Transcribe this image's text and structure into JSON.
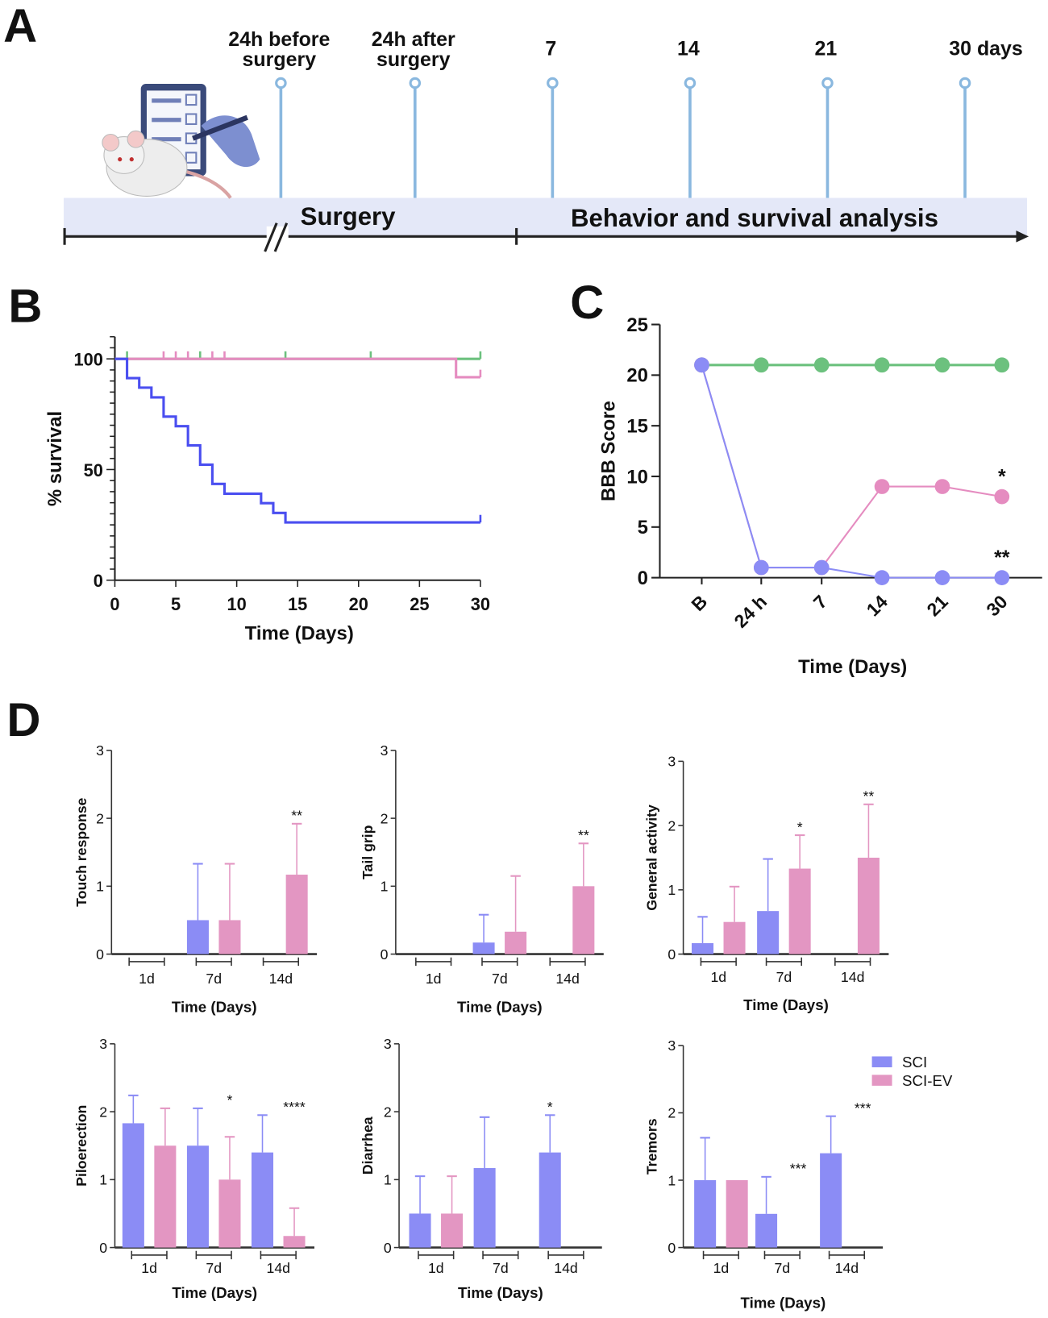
{
  "panel_labels": {
    "a": "A",
    "b": "B",
    "c": "C",
    "d": "D"
  },
  "colors": {
    "sham_green": "#6cc17e",
    "sci_curve_blue": "#4a4ef0",
    "sci_ev_pink": "#e58cc0",
    "bar_sci": "#8b8cf5",
    "bar_sci_ev": "#e396c2",
    "timeline_band": "#e4e8f8",
    "timeline_pin": "#8ab8df"
  },
  "timeline": {
    "timepoints": [
      [
        "24h before",
        "surgery"
      ],
      [
        "24h after",
        "surgery"
      ],
      [
        "7"
      ],
      [
        "14"
      ],
      [
        "21"
      ],
      [
        "30 days"
      ]
    ],
    "phases": [
      "Surgery",
      "Behavior and survival analysis"
    ],
    "illustration": "rat-with-checklist-icon"
  },
  "chart_data": [
    {
      "panel": "B",
      "type": "line",
      "subtype": "kaplan-meier step",
      "xlabel": "Time (Days)",
      "ylabel": "% survival",
      "xlim": [
        0,
        30
      ],
      "ylim": [
        0,
        100
      ],
      "xticks": [
        0,
        5,
        10,
        15,
        20,
        25,
        30
      ],
      "yticks": [
        0,
        50,
        100
      ],
      "series": [
        {
          "color": "#6cc17e",
          "steps": [
            [
              0,
              100
            ],
            [
              30,
              100
            ]
          ],
          "censored": [
            1,
            7,
            14,
            21,
            30
          ]
        },
        {
          "color": "#e58cc0",
          "steps": [
            [
              0,
              100
            ],
            [
              28,
              100
            ],
            [
              28,
              91.7
            ],
            [
              30,
              91.7
            ]
          ],
          "censored": [
            4,
            5,
            6,
            8,
            9,
            30
          ]
        },
        {
          "color": "#4a4ef0",
          "steps": [
            [
              0,
              100
            ],
            [
              1,
              100
            ],
            [
              1,
              91.3
            ],
            [
              2,
              91.3
            ],
            [
              2,
              87.0
            ],
            [
              3,
              87.0
            ],
            [
              3,
              82.6
            ],
            [
              4,
              82.6
            ],
            [
              4,
              73.9
            ],
            [
              5,
              73.9
            ],
            [
              5,
              69.6
            ],
            [
              6,
              69.6
            ],
            [
              6,
              60.9
            ],
            [
              7,
              60.9
            ],
            [
              7,
              52.2
            ],
            [
              8,
              52.2
            ],
            [
              8,
              43.5
            ],
            [
              9,
              43.5
            ],
            [
              9,
              39.1
            ],
            [
              12,
              39.1
            ],
            [
              12,
              34.8
            ],
            [
              13,
              34.8
            ],
            [
              13,
              30.4
            ],
            [
              14,
              30.4
            ],
            [
              14,
              26.1
            ],
            [
              30,
              26.1
            ]
          ],
          "censored": [
            30
          ]
        }
      ]
    },
    {
      "panel": "C",
      "type": "line",
      "xlabel": "Time (Days)",
      "ylabel": "BBB Score",
      "categories": [
        "B",
        "24 h",
        "7",
        "14",
        "21",
        "30"
      ],
      "ylim": [
        0,
        25
      ],
      "yticks": [
        0,
        5,
        10,
        15,
        20,
        25
      ],
      "series": [
        {
          "color": "#6cc17e",
          "values": [
            21,
            21,
            21,
            21,
            21,
            21
          ]
        },
        {
          "color": "#e58cc0",
          "values": [
            21,
            1,
            1,
            9,
            9,
            8
          ]
        },
        {
          "color": "#8b8cf5",
          "values": [
            21,
            1,
            1,
            0,
            0,
            0
          ]
        }
      ],
      "annotations": [
        {
          "category": "30",
          "series_color": "#e58cc0",
          "text": "*"
        },
        {
          "category": "30",
          "series_color": "#8b8cf5",
          "text": "**"
        }
      ]
    },
    {
      "panel": "D",
      "type": "bar",
      "ylabel": "Touch response",
      "xlabel": "Time (Days)",
      "categories": [
        "1d",
        "7d",
        "14d"
      ],
      "ylim": [
        0,
        3
      ],
      "yticks": [
        0,
        1,
        2,
        3
      ],
      "series": [
        {
          "name": "SCI",
          "values": [
            0,
            0.5,
            0
          ],
          "err_top": [
            null,
            1.33,
            null
          ]
        },
        {
          "name": "SCI-EV",
          "values": [
            0,
            0.5,
            1.17
          ],
          "err_top": [
            null,
            1.33,
            1.92
          ]
        }
      ],
      "significance": [
        null,
        null,
        "**"
      ]
    },
    {
      "panel": "D",
      "type": "bar",
      "ylabel": "Tail grip",
      "xlabel": "Time (Days)",
      "categories": [
        "1d",
        "7d",
        "14d"
      ],
      "ylim": [
        0,
        3
      ],
      "yticks": [
        0,
        1,
        2,
        3
      ],
      "series": [
        {
          "name": "SCI",
          "values": [
            0,
            0.17,
            0
          ],
          "err_top": [
            null,
            0.58,
            null
          ]
        },
        {
          "name": "SCI-EV",
          "values": [
            0,
            0.33,
            1.0
          ],
          "err_top": [
            null,
            1.15,
            1.63
          ]
        }
      ],
      "significance": [
        null,
        null,
        "**"
      ]
    },
    {
      "panel": "D",
      "type": "bar",
      "ylabel": "General activity",
      "xlabel": "Time (Days)",
      "categories": [
        "1d",
        "7d",
        "14d"
      ],
      "ylim": [
        0,
        3
      ],
      "yticks": [
        0,
        1,
        2,
        3
      ],
      "series": [
        {
          "name": "SCI",
          "values": [
            0.17,
            0.67,
            0
          ],
          "err_top": [
            0.58,
            1.48,
            null
          ]
        },
        {
          "name": "SCI-EV",
          "values": [
            0.5,
            1.33,
            1.5
          ],
          "err_top": [
            1.05,
            1.85,
            2.33
          ]
        }
      ],
      "significance": [
        null,
        "*",
        "**"
      ]
    },
    {
      "panel": "D",
      "type": "bar",
      "ylabel": "Piloerection",
      "xlabel": "Time (Days)",
      "categories": [
        "1d",
        "7d",
        "14d"
      ],
      "ylim": [
        0,
        3
      ],
      "yticks": [
        0,
        1,
        2,
        3
      ],
      "series": [
        {
          "name": "SCI",
          "values": [
            1.83,
            1.5,
            1.4
          ],
          "err_top": [
            2.24,
            2.05,
            1.95
          ]
        },
        {
          "name": "SCI-EV",
          "values": [
            1.5,
            1.0,
            0.17
          ],
          "err_top": [
            2.05,
            1.63,
            0.58
          ]
        }
      ],
      "significance": [
        null,
        "*",
        "****"
      ]
    },
    {
      "panel": "D",
      "type": "bar",
      "ylabel": "Diarrhea",
      "xlabel": "Time (Days)",
      "categories": [
        "1d",
        "7d",
        "14d"
      ],
      "ylim": [
        0,
        3
      ],
      "yticks": [
        0,
        1,
        2,
        3
      ],
      "series": [
        {
          "name": "SCI",
          "values": [
            0.5,
            1.17,
            1.4
          ],
          "err_top": [
            1.05,
            1.92,
            1.95
          ]
        },
        {
          "name": "SCI-EV",
          "values": [
            0.5,
            0,
            0
          ],
          "err_top": [
            1.05,
            null,
            null
          ]
        }
      ],
      "significance": [
        null,
        null,
        "*"
      ]
    },
    {
      "panel": "D",
      "type": "bar",
      "ylabel": "Tremors",
      "xlabel": "Time (Days)",
      "categories": [
        "1d",
        "7d",
        "14d"
      ],
      "ylim": [
        0,
        3
      ],
      "yticks": [
        0,
        1,
        2,
        3
      ],
      "series": [
        {
          "name": "SCI",
          "values": [
            1.0,
            0.5,
            1.4
          ],
          "err_top": [
            1.63,
            1.05,
            1.95
          ]
        },
        {
          "name": "SCI-EV",
          "values": [
            1.0,
            0,
            0
          ],
          "err_top": [
            null,
            null,
            null
          ]
        }
      ],
      "significance": [
        null,
        "***",
        "***"
      ]
    }
  ],
  "legend": {
    "items": [
      "SCI",
      "SCI-EV"
    ],
    "placement": "right of bottom row"
  }
}
